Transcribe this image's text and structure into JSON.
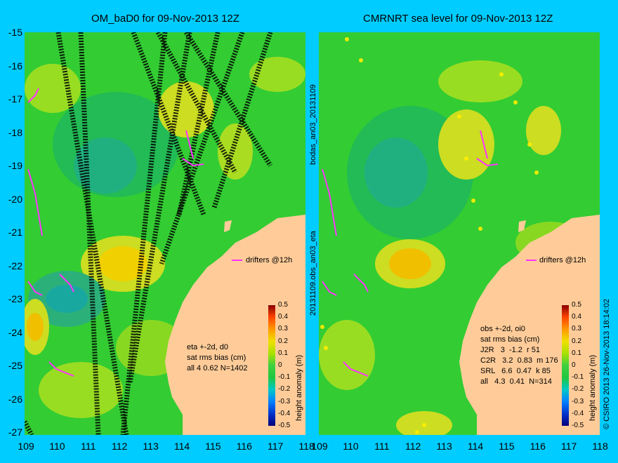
{
  "left_panel": {
    "title": "OM_baD0 for 09-Nov-2013 12Z",
    "annotation": "eta +-2d, d0\nsat rms bias (cm)\nall 4 0.62 N=1402",
    "drifters_label": "drifters @12h",
    "colorbar_label": "height anomaly (m)"
  },
  "right_panel": {
    "title": "CMRNRT sea level  for 09-Nov-2013 12Z",
    "annotation": "obs +-2d, oi0\nsat rms bias (cm)\nJ2R   3  -1.2  r 51\nC2R   3.2  0.83  m 176\nSRL   6.6  0.47  k 85\nall   4.3  0.41  N=314",
    "drifters_label": "drifters @12h",
    "colorbar_label": "height anomaly (m)"
  },
  "middle_labels": {
    "top": "bodas_an03_20131109",
    "bottom": "20131109.obs_an03_eta"
  },
  "copyright": "© CSIRO 2013  26-Nov-2013 18:14:02",
  "y_axis": {
    "ticks": [
      "-15",
      "-16",
      "-17",
      "-18",
      "-19",
      "-20",
      "-21",
      "-22",
      "-23",
      "-24",
      "-25",
      "-26",
      "-27"
    ]
  },
  "x_axis": {
    "ticks": [
      "109",
      "110",
      "111",
      "112",
      "113",
      "114",
      "115",
      "116",
      "117",
      "118"
    ]
  },
  "colorbar": {
    "ticks": [
      "0.5",
      "0.4",
      "0.3",
      "0.2",
      "0.1",
      "0",
      "-0.1",
      "-0.2",
      "-0.3",
      "-0.4",
      "-0.5"
    ],
    "range": [
      -0.5,
      0.5
    ],
    "colors": [
      "#00007a",
      "#0033cc",
      "#0080ff",
      "#00c8c8",
      "#20c840",
      "#40d040",
      "#a8e000",
      "#f0e000",
      "#ff9900",
      "#ff4400",
      "#8a0000"
    ]
  },
  "colors": {
    "background": "#00ccff",
    "land": "#ffcc99",
    "drifter": "#ff33ff",
    "sea_base": "#33cc33"
  }
}
